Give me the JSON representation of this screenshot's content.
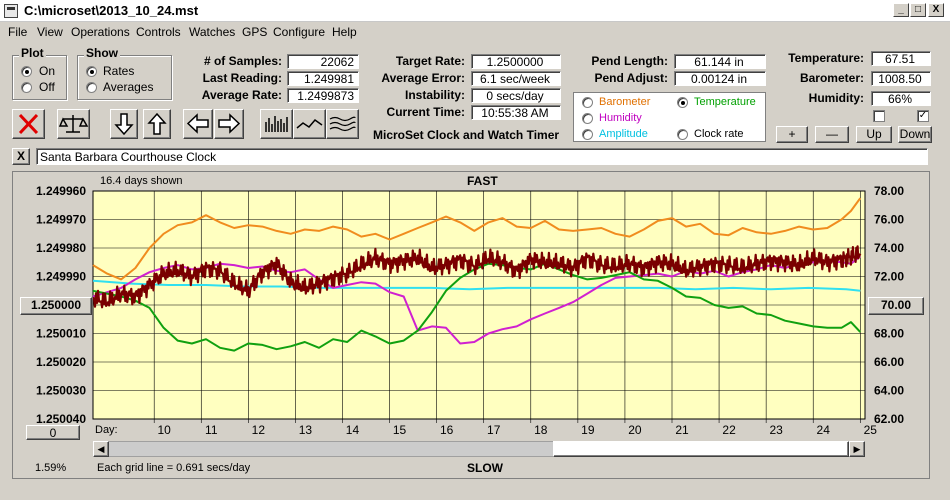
{
  "window": {
    "title": "C:\\microset\\2013_10_24.mst",
    "minimize": "_",
    "maximize": "□",
    "close": "X"
  },
  "menu": [
    "File",
    "View",
    "Operations",
    "Controls",
    "Watches",
    "GPS",
    "Configure",
    "Help"
  ],
  "plot_group": {
    "title": "Plot",
    "options": [
      "On",
      "Off"
    ],
    "selected": 0
  },
  "show_group": {
    "title": "Show",
    "options": [
      "Rates",
      "Averages"
    ],
    "selected": 0
  },
  "stats": {
    "samples_label": "# of Samples:",
    "samples": "22062",
    "last_label": "Last Reading:",
    "last": "1.249981",
    "avg_label": "Average Rate:",
    "avg": "1.2499873"
  },
  "rates": {
    "target_label": "Target Rate:",
    "target": "1.2500000",
    "error_label": "Average Error:",
    "error": "6.1 sec/week",
    "instability_label": "Instability:",
    "instability": "0 secs/day",
    "time_label": "Current Time:",
    "time": "10:55:38 AM"
  },
  "pend": {
    "length_label": "Pend Length:",
    "length": "61.144 in",
    "adjust_label": "Pend Adjust:",
    "adjust": "0.00124 in"
  },
  "env": {
    "temp_label": "Temperature:",
    "temp": "67.51",
    "baro_label": "Barometer:",
    "baro": "1008.50",
    "hum_label": "Humidity:",
    "hum": "66%"
  },
  "sensor_options": [
    {
      "label": "Barometer",
      "color": "#e07000",
      "checked": false
    },
    {
      "label": "Temperature",
      "color": "#00a000",
      "checked": true
    },
    {
      "label": "Humidity",
      "color": "#c000c0",
      "checked": false
    },
    {
      "label": "Amplitude",
      "color": "#00c0e0",
      "checked": false
    },
    {
      "label": "Clock rate",
      "color": "#000000",
      "checked": false
    }
  ],
  "app_name": "MicroSet Clock and Watch Timer",
  "adjust_buttons": [
    "+",
    "—",
    "Up",
    "Down"
  ],
  "checkboxes": [
    false,
    true
  ],
  "toolbar_icons": [
    "clear-x-icon",
    "balance-scale-icon",
    "arrow-down-icon",
    "arrow-up-icon",
    "arrow-left-icon",
    "arrow-right-icon",
    "bar-graph-icon",
    "wave-icon",
    "multi-wave-icon"
  ],
  "description": {
    "close": "X",
    "text": "Santa Barbara Courthouse Clock"
  },
  "chart_labels": {
    "days_shown": "16.4 days shown",
    "top": "FAST",
    "bottom": "SLOW",
    "day_label": "Day:",
    "grid_note": "Each grid line = 0.691 secs/day",
    "percent": "1.59%",
    "left_button": "1.250000",
    "right_button": "70.00",
    "zero_button": "0"
  },
  "colors": {
    "plot_bg": "#ffffc0",
    "barometer": "#f08c1e",
    "temperature": "#10a010",
    "humidity": "#d020d0",
    "amplitude": "#30e0f0",
    "clock_rate": "#7a0000"
  },
  "chart_data": {
    "type": "line",
    "x_label": "Day:",
    "x_ticks": [
      10,
      11,
      12,
      13,
      14,
      15,
      16,
      17,
      18,
      19,
      20,
      21,
      22,
      23,
      24,
      25
    ],
    "xlim": [
      8.7,
      25.1
    ],
    "y_left_ticks": [
      "1.249960",
      "1.249970",
      "1.249980",
      "1.249990",
      "1.250000",
      "1.250010",
      "1.250020",
      "1.250030",
      "1.250040"
    ],
    "ylim_left": [
      1.25004,
      1.24996
    ],
    "y_right_ticks": [
      "78.00",
      "76.00",
      "74.00",
      "72.00",
      "70.00",
      "68.00",
      "66.00",
      "64.00",
      "62.00"
    ],
    "ylim_right": [
      62,
      78
    ],
    "grid": true,
    "series": [
      {
        "name": "Barometer",
        "axis": "right",
        "x": [
          8.7,
          9.0,
          9.3,
          9.6,
          9.9,
          10.2,
          10.5,
          10.8,
          11.1,
          11.4,
          11.7,
          12.0,
          12.3,
          12.6,
          12.9,
          13.2,
          13.5,
          13.8,
          14.1,
          14.4,
          14.7,
          15.0,
          15.3,
          15.6,
          15.9,
          16.2,
          16.5,
          16.8,
          17.1,
          17.4,
          17.7,
          18.0,
          18.3,
          18.6,
          18.9,
          19.2,
          19.5,
          19.8,
          20.1,
          20.4,
          20.7,
          21.0,
          21.3,
          21.6,
          21.9,
          22.2,
          22.5,
          22.8,
          23.1,
          23.4,
          23.7,
          24.0,
          24.3,
          24.6,
          24.8,
          25.0
        ],
        "values": [
          72.8,
          72.2,
          71.8,
          72.6,
          74.0,
          75.0,
          75.6,
          75.8,
          76.3,
          75.8,
          75.4,
          75.6,
          75.5,
          75.2,
          75.0,
          75.3,
          75.2,
          75.5,
          75.3,
          74.8,
          75.0,
          74.6,
          75.0,
          75.4,
          75.8,
          76.2,
          75.8,
          75.2,
          75.8,
          76.1,
          75.5,
          75.4,
          75.9,
          75.3,
          75.2,
          75.3,
          75.4,
          75.0,
          74.8,
          75.3,
          75.9,
          76.1,
          75.5,
          75.7,
          75.0,
          74.9,
          75.4,
          75.1,
          75.0,
          75.2,
          75.5,
          75.3,
          75.4,
          76.0,
          76.6,
          77.5
        ]
      },
      {
        "name": "Temperature",
        "axis": "right",
        "x": [
          8.7,
          9.0,
          9.3,
          9.6,
          9.9,
          10.2,
          10.5,
          10.8,
          11.1,
          11.4,
          11.7,
          12.0,
          12.3,
          12.6,
          12.9,
          13.2,
          13.5,
          13.8,
          14.1,
          14.4,
          14.7,
          15.0,
          15.3,
          15.6,
          15.9,
          16.2,
          16.5,
          16.8,
          17.1,
          17.4,
          17.7,
          18.0,
          18.3,
          18.6,
          18.9,
          19.2,
          19.5,
          19.8,
          20.1,
          20.4,
          20.7,
          21.0,
          21.3,
          21.6,
          21.9,
          22.2,
          22.5,
          22.8,
          23.1,
          23.4,
          23.7,
          24.0,
          24.3,
          24.6,
          24.8,
          25.0
        ],
        "values": [
          71.0,
          70.8,
          70.6,
          70.3,
          69.8,
          68.4,
          67.5,
          67.3,
          67.6,
          67.0,
          66.8,
          67.3,
          67.2,
          66.9,
          67.1,
          67.4,
          67.0,
          67.6,
          67.4,
          68.2,
          67.8,
          67.3,
          67.5,
          68.2,
          69.5,
          71.0,
          71.9,
          72.5,
          72.9,
          72.8,
          72.6,
          72.5,
          72.9,
          72.5,
          72.1,
          71.8,
          71.9,
          72.1,
          72.3,
          71.8,
          71.7,
          71.2,
          70.6,
          70.5,
          70.0,
          69.8,
          69.9,
          69.4,
          69.3,
          68.9,
          68.7,
          68.5,
          68.4,
          68.4,
          68.8,
          68.1
        ]
      },
      {
        "name": "Humidity",
        "axis": "right",
        "x": [
          8.7,
          9.0,
          9.3,
          9.6,
          9.9,
          10.2,
          10.5,
          10.8,
          11.1,
          11.4,
          11.7,
          12.0,
          12.3,
          12.6,
          12.9,
          13.2,
          13.5,
          13.8,
          14.1,
          14.4,
          14.7,
          15.0,
          15.3,
          15.6,
          15.9,
          16.2,
          16.5,
          16.8,
          17.1,
          17.4,
          17.7,
          18.0,
          18.3,
          18.6,
          18.9,
          19.2,
          19.5,
          19.8,
          20.1,
          20.4,
          20.7,
          21.0,
          21.3,
          21.6,
          21.9,
          22.2,
          22.5,
          22.8,
          23.1,
          23.4,
          23.7,
          24.0,
          24.3,
          24.6,
          24.8,
          25.0
        ],
        "values": [
          70.6,
          70.9,
          71.2,
          71.8,
          72.3,
          72.6,
          72.8,
          72.5,
          72.6,
          72.9,
          72.8,
          72.6,
          72.7,
          72.4,
          72.3,
          72.5,
          71.8,
          71.2,
          71.4,
          71.6,
          71.5,
          70.9,
          70.6,
          68.2,
          68.5,
          68.4,
          67.3,
          67.4,
          68.0,
          68.3,
          68.5,
          69.0,
          69.4,
          69.8,
          70.2,
          70.8,
          71.4,
          71.9,
          72.0,
          72.1,
          72.2,
          72.0,
          72.4,
          72.2,
          72.4,
          72.0,
          72.3,
          72.5,
          72.8,
          72.6,
          72.9,
          73.0,
          73.1,
          73.0,
          72.9,
          73.4
        ]
      },
      {
        "name": "Amplitude",
        "axis": "right",
        "x": [
          8.7,
          9.5,
          10.3,
          11.1,
          11.9,
          12.7,
          13.5,
          14.3,
          15.1,
          15.9,
          16.7,
          17.5,
          18.3,
          19.1,
          19.9,
          20.7,
          21.5,
          22.3,
          23.1,
          23.9,
          24.7,
          25.0
        ],
        "values": [
          71.7,
          71.5,
          71.4,
          71.4,
          71.3,
          71.3,
          71.2,
          71.2,
          71.2,
          71.2,
          71.1,
          71.2,
          71.2,
          71.2,
          71.2,
          71.2,
          71.1,
          71.2,
          71.1,
          71.2,
          71.1,
          71.0
        ]
      },
      {
        "name": "Clock rate",
        "axis": "right",
        "x": [
          8.7,
          9.0,
          9.3,
          9.6,
          9.9,
          10.2,
          10.5,
          10.8,
          11.1,
          11.4,
          11.7,
          12.0,
          12.3,
          12.6,
          12.9,
          13.2,
          13.5,
          13.8,
          14.1,
          14.4,
          14.7,
          15.0,
          15.3,
          15.6,
          15.9,
          16.2,
          16.5,
          16.8,
          17.1,
          17.4,
          17.7,
          18.0,
          18.3,
          18.6,
          18.9,
          19.2,
          19.5,
          19.8,
          20.1,
          20.4,
          20.7,
          21.0,
          21.3,
          21.6,
          21.9,
          22.2,
          22.5,
          22.8,
          23.1,
          23.4,
          23.7,
          24.0,
          24.3,
          24.6,
          24.8,
          25.0
        ],
        "values": [
          70.5,
          70.2,
          70.8,
          70.6,
          71.4,
          72.2,
          72.4,
          72.0,
          72.6,
          72.4,
          71.5,
          71.0,
          72.3,
          72.9,
          71.6,
          71.2,
          71.5,
          71.9,
          72.2,
          72.8,
          73.3,
          72.9,
          73.1,
          73.3,
          72.6,
          72.8,
          73.2,
          72.7,
          73.3,
          73.0,
          72.4,
          73.2,
          73.0,
          72.9,
          72.6,
          73.3,
          72.8,
          72.7,
          72.9,
          72.6,
          73.0,
          72.9,
          72.4,
          72.7,
          72.9,
          72.8,
          72.6,
          72.9,
          73.1,
          73.0,
          72.8,
          73.3,
          73.0,
          73.2,
          73.4,
          73.6
        ]
      }
    ]
  }
}
